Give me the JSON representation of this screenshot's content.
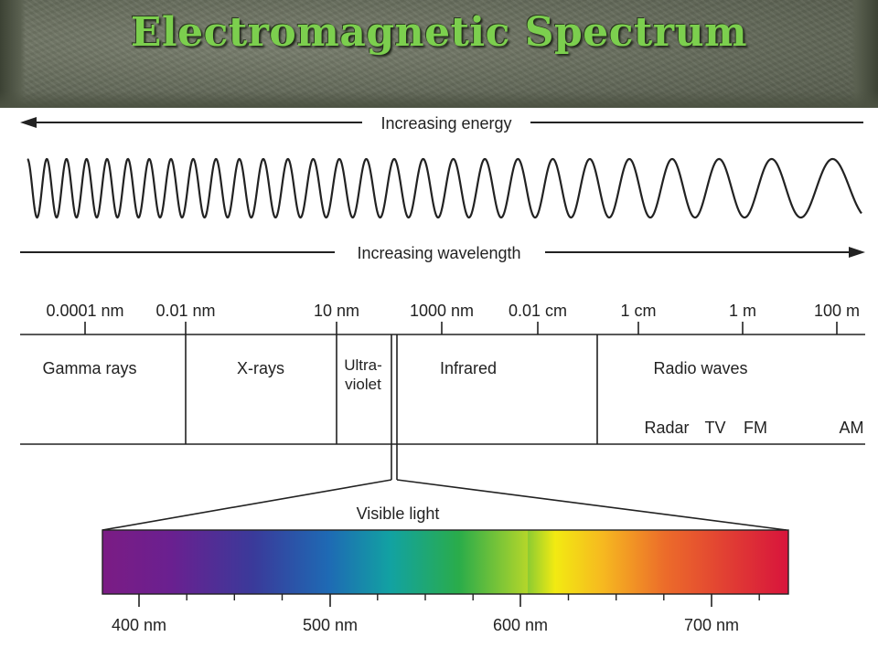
{
  "title": "Electromagnetic Spectrum",
  "arrows": {
    "energy": "Increasing energy",
    "wavelength": "Increasing wavelength"
  },
  "scale_ticks": [
    "0.0001 nm",
    "0.01 nm",
    "10 nm",
    "1000 nm",
    "0.01 cm",
    "1 cm",
    "1 m",
    "100 m"
  ],
  "regions": {
    "gamma": "Gamma rays",
    "xrays": "X-rays",
    "ultraviolet": [
      "Ultra-",
      "violet"
    ],
    "infrared": "Infrared",
    "radio": "Radio waves"
  },
  "radio_bands": [
    "Radar",
    "TV",
    "FM",
    "AM"
  ],
  "visible": {
    "label": "Visible light",
    "ticks": [
      "400 nm",
      "500 nm",
      "600 nm",
      "700 nm"
    ],
    "colors": [
      "#7b1c84",
      "#3a3a9a",
      "#1e6ab4",
      "#12a2a2",
      "#2aac4a",
      "#b4d62a",
      "#f2ea12",
      "#f29a22",
      "#e8542a",
      "#d8143c"
    ]
  }
}
